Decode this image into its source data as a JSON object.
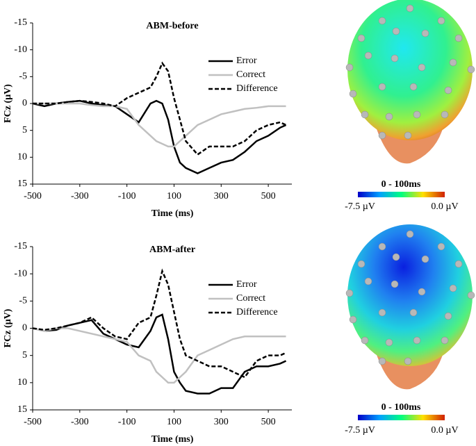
{
  "chart_data": [
    {
      "type": "line",
      "title": "ABM-before",
      "x_label": "Time (ms)",
      "y_label": "FCz (µV)",
      "x": [
        -500,
        -450,
        -400,
        -350,
        -300,
        -250,
        -200,
        -150,
        -100,
        -50,
        0,
        25,
        50,
        75,
        100,
        125,
        150,
        200,
        250,
        300,
        350,
        400,
        450,
        500,
        550,
        575
      ],
      "series": [
        {
          "name": "Error",
          "color": "#000000",
          "dash": false,
          "values": [
            0,
            0.5,
            0,
            -0.3,
            -0.5,
            0,
            0.3,
            0.5,
            2,
            3.5,
            0,
            -0.5,
            0,
            3,
            8,
            11,
            12,
            13,
            12,
            11,
            10.5,
            9,
            7,
            6,
            4.5,
            4
          ]
        },
        {
          "name": "Correct",
          "color": "#c0c0c0",
          "dash": false,
          "values": [
            0,
            0,
            0,
            0,
            0,
            0.3,
            0.5,
            0.5,
            1,
            4,
            6,
            7,
            7.5,
            8,
            8,
            7,
            6,
            4,
            3,
            2,
            1.5,
            1,
            0.8,
            0.5,
            0.5,
            0.5
          ]
        },
        {
          "name": "Difference",
          "color": "#000000",
          "dash": true,
          "values": [
            0,
            0,
            0,
            -0.3,
            -0.5,
            -0.3,
            0,
            0.5,
            -1,
            -2,
            -3,
            -5,
            -7.5,
            -6,
            -1,
            3,
            7,
            9.5,
            8,
            8,
            8,
            7,
            5,
            4,
            3.5,
            4
          ]
        }
      ],
      "xlim": [
        -500,
        600
      ],
      "xticks": [
        -500,
        -300,
        -100,
        100,
        300,
        500
      ],
      "ylim": [
        15,
        -15
      ],
      "yticks": [
        -15,
        -10,
        -5,
        0,
        5,
        10,
        15
      ],
      "legend": "upper right"
    },
    {
      "type": "line",
      "title": "ABM-after",
      "x_label": "Time (ms)",
      "y_label": "FCz (µV)",
      "x": [
        -500,
        -450,
        -400,
        -350,
        -300,
        -250,
        -200,
        -150,
        -100,
        -50,
        0,
        25,
        50,
        75,
        100,
        125,
        150,
        200,
        250,
        300,
        350,
        400,
        450,
        500,
        550,
        575
      ],
      "series": [
        {
          "name": "Error",
          "color": "#000000",
          "dash": false,
          "values": [
            0,
            0.5,
            0.3,
            -0.5,
            -1,
            -1.5,
            1,
            2,
            3,
            3.5,
            0.5,
            -2,
            -2.5,
            2,
            8,
            10,
            11.5,
            12,
            12,
            11,
            11,
            8,
            7,
            7,
            6.5,
            6
          ]
        },
        {
          "name": "Correct",
          "color": "#c0c0c0",
          "dash": false,
          "values": [
            0,
            0.5,
            0,
            0,
            0.5,
            1,
            1.5,
            2,
            2.5,
            5,
            6,
            8,
            9,
            10,
            10,
            9,
            8,
            5,
            4,
            3,
            2,
            1.5,
            1.5,
            1.5,
            1.5,
            1.5
          ]
        },
        {
          "name": "Difference",
          "color": "#000000",
          "dash": true,
          "values": [
            0,
            0.3,
            0,
            -0.5,
            -1,
            -2,
            0,
            1.5,
            2,
            -1,
            -2,
            -6,
            -10.5,
            -8,
            -3,
            2,
            5,
            6,
            7,
            7,
            8,
            9,
            6,
            5,
            5,
            4.5
          ]
        }
      ],
      "xlim": [
        -500,
        600
      ],
      "xticks": [
        -500,
        -300,
        -100,
        100,
        300,
        500
      ],
      "ylim": [
        15,
        -15
      ],
      "yticks": [
        -15,
        -10,
        -5,
        0,
        5,
        10,
        15
      ],
      "legend": "upper right"
    }
  ],
  "topomaps": [
    {
      "window": "0 - 100ms",
      "min_label": "-7.5 µV",
      "max_label": "0.0 µV"
    },
    {
      "window": "0 - 100ms",
      "min_label": "-7.5 µV",
      "max_label": "0.0 µV"
    }
  ]
}
